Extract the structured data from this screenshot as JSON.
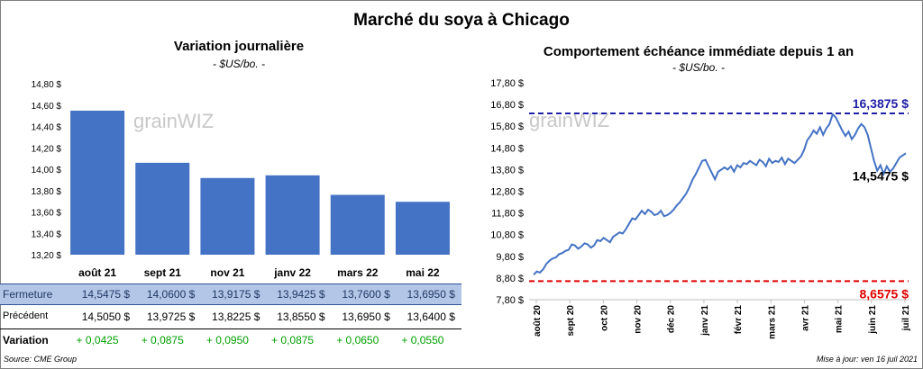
{
  "title": "Marché du soya à Chicago",
  "left_panel": {
    "title": "Variation journalière",
    "subtitle": "- $US/bo. -"
  },
  "right_panel": {
    "title": "Comportement échéance immédiate depuis 1 an",
    "subtitle": "- $US/bo. -"
  },
  "watermark": "grainWIZ",
  "table": {
    "rows": [
      {
        "label": "Fermeture",
        "values": [
          "14,5475 $",
          "14,0600 $",
          "13,9175 $",
          "13,9425 $",
          "13,7600 $",
          "13,6950 $"
        ]
      },
      {
        "label": "Précédent",
        "values": [
          "14,5050 $",
          "13,9725 $",
          "13,8225 $",
          "13,8550 $",
          "13,6950 $",
          "13,6400 $"
        ]
      },
      {
        "label": "Variation",
        "values": [
          "+ 0,0425",
          "+ 0,0875",
          "+ 0,0950",
          "+ 0,0875",
          "+ 0,0650",
          "+ 0,0550"
        ]
      }
    ]
  },
  "footer": {
    "source": "Source: CME Group",
    "updated": "Mise à jour: ven 16 juil 2021"
  },
  "colors": {
    "bar": "#4472c4",
    "fermeture_bg": "#b4c6e7",
    "variation_text": "#00a000",
    "line": "#4472c4",
    "max_line": "#1f1fa8",
    "min_line": "#e00000"
  },
  "chart_data": [
    {
      "type": "bar",
      "title": "Variation journalière",
      "subtitle": "- $US/bo. -",
      "categories": [
        "août 21",
        "sept 21",
        "nov 21",
        "janv 22",
        "mars 22",
        "mai 22"
      ],
      "values": [
        14.5475,
        14.06,
        13.9175,
        13.9425,
        13.76,
        13.695
      ],
      "ylim": [
        13.2,
        14.8
      ],
      "yticks": [
        "13,20 $",
        "13,40 $",
        "13,60 $",
        "13,80 $",
        "14,00 $",
        "14,20 $",
        "14,40 $",
        "14,60 $",
        "14,80 $"
      ],
      "grid": false
    },
    {
      "type": "line",
      "title": "Comportement échéance immédiate depuis 1 an",
      "subtitle": "- $US/bo. -",
      "ylim": [
        7.8,
        17.8
      ],
      "yticks": [
        "7,80 $",
        "8,80 $",
        "9,80 $",
        "10,80 $",
        "11,80 $",
        "12,80 $",
        "13,80 $",
        "14,80 $",
        "15,80 $",
        "16,80 $",
        "17,80 $"
      ],
      "xticks": [
        "août 20",
        "sept 20",
        "oct 20",
        "nov 20",
        "déc 20",
        "janv 21",
        "févr 21",
        "mars 21",
        "avr 21",
        "mai 21",
        "juin 21",
        "juil 21"
      ],
      "max": {
        "value": 16.3875,
        "label": "16,3875 $"
      },
      "min": {
        "value": 8.6575,
        "label": "8,6575 $"
      },
      "last": {
        "value": 14.5475,
        "label": "14,5475 $"
      },
      "series": [
        {
          "values": [
            8.95,
            9.1,
            9.05,
            9.2,
            9.45,
            9.6,
            9.7,
            9.75,
            9.9,
            9.95,
            10.05,
            10.1,
            10.35,
            10.3,
            10.15,
            10.25,
            10.4,
            10.35,
            10.2,
            10.3,
            10.55,
            10.5,
            10.65,
            10.55,
            10.45,
            10.7,
            10.8,
            10.9,
            10.85,
            11.05,
            11.3,
            11.55,
            11.5,
            11.7,
            11.9,
            11.75,
            11.95,
            11.85,
            11.7,
            11.75,
            11.9,
            11.65,
            11.7,
            11.8,
            11.95,
            12.15,
            12.3,
            12.5,
            12.7,
            13.0,
            13.35,
            13.6,
            13.9,
            14.2,
            14.25,
            13.95,
            13.65,
            13.35,
            13.7,
            13.8,
            13.9,
            13.8,
            13.95,
            13.7,
            14.0,
            13.9,
            14.1,
            14.05,
            14.2,
            14.1,
            14.0,
            14.25,
            14.15,
            13.95,
            14.3,
            14.1,
            14.2,
            14.15,
            14.35,
            14.05,
            14.3,
            14.2,
            14.1,
            14.25,
            14.4,
            14.7,
            15.15,
            15.35,
            15.6,
            15.45,
            15.75,
            15.4,
            15.7,
            15.9,
            16.35,
            16.2,
            15.9,
            15.6,
            15.35,
            15.55,
            15.2,
            15.4,
            15.7,
            15.9,
            15.75,
            15.4,
            14.8,
            14.2,
            13.75,
            14.0,
            13.6,
            13.95,
            13.7,
            13.85,
            14.1,
            14.35,
            14.45,
            14.5475
          ]
        }
      ]
    }
  ]
}
